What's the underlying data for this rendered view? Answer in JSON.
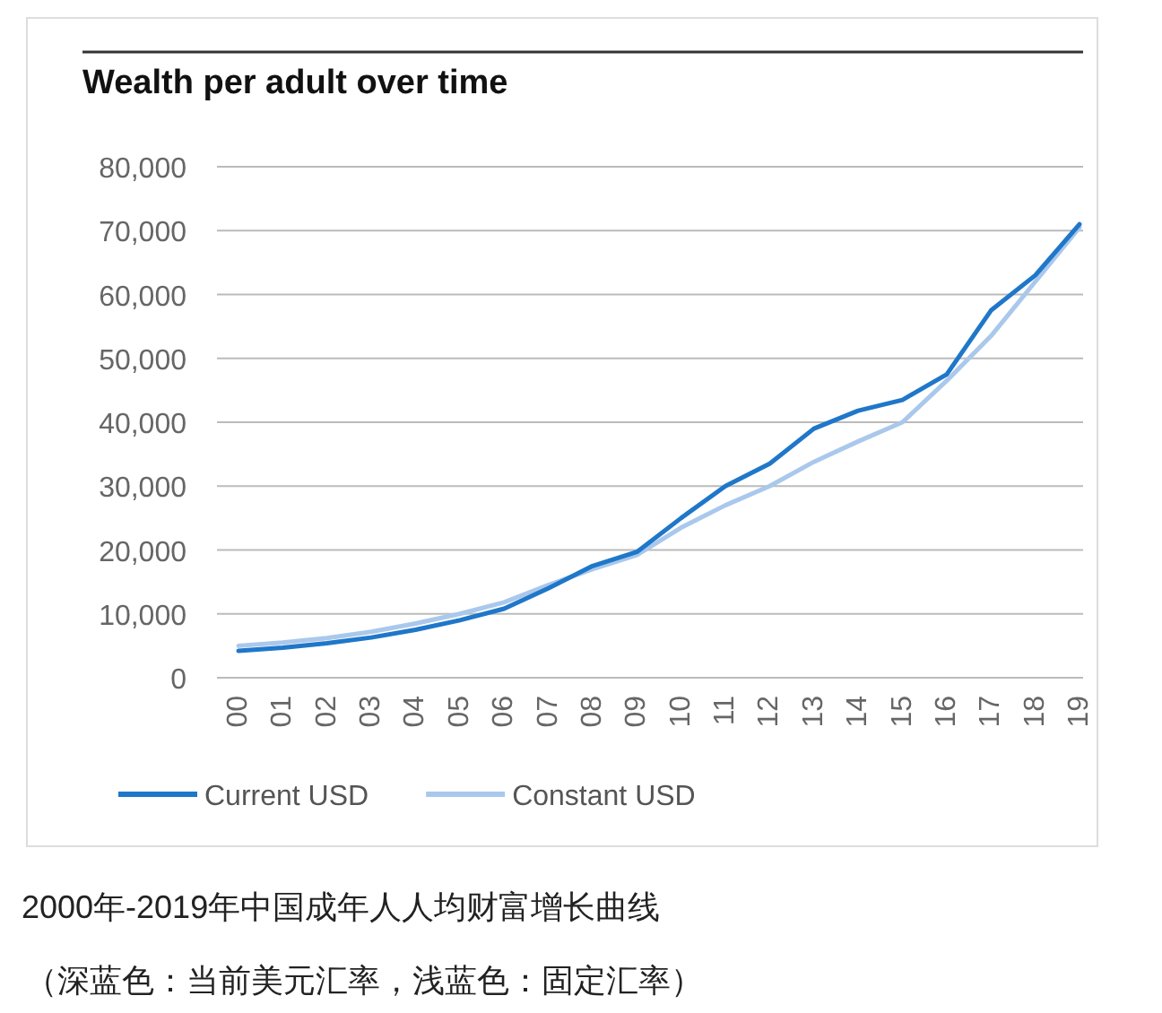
{
  "chart_data": {
    "type": "line",
    "title": "Wealth per adult over time",
    "categories": [
      "00",
      "01",
      "02",
      "03",
      "04",
      "05",
      "06",
      "07",
      "08",
      "09",
      "10",
      "11",
      "12",
      "13",
      "14",
      "15",
      "16",
      "17",
      "18",
      "19"
    ],
    "series": [
      {
        "name": "Current USD",
        "color": "#1f77c9",
        "values": [
          4200,
          4700,
          5400,
          6300,
          7500,
          9000,
          10800,
          14000,
          17500,
          19700,
          25000,
          30000,
          33500,
          39000,
          41800,
          43500,
          47500,
          57500,
          63000,
          71000
        ]
      },
      {
        "name": "Constant USD",
        "color": "#a9c8ec",
        "values": [
          5000,
          5500,
          6200,
          7200,
          8500,
          10000,
          11800,
          14500,
          17000,
          19200,
          23500,
          27000,
          30000,
          33800,
          37000,
          40000,
          46500,
          53500,
          62000,
          70500
        ]
      }
    ],
    "ylim": [
      0,
      80000
    ],
    "yticks": [
      {
        "value": 0,
        "label": "0"
      },
      {
        "value": 10000,
        "label": "10,000"
      },
      {
        "value": 20000,
        "label": "20,000"
      },
      {
        "value": 30000,
        "label": "30,000"
      },
      {
        "value": 40000,
        "label": "40,000"
      },
      {
        "value": 50000,
        "label": "50,000"
      },
      {
        "value": 60000,
        "label": "60,000"
      },
      {
        "value": 70000,
        "label": "70,000"
      },
      {
        "value": 80000,
        "label": "80,000"
      }
    ],
    "grid": "y",
    "legend": "bottom left",
    "marker": "none",
    "line_style": "solid",
    "annotations": [
      "2000年-2019年中国成年人人均财富增长曲线",
      "（深蓝色：当前美元汇率，浅蓝色：固定汇率）"
    ]
  }
}
